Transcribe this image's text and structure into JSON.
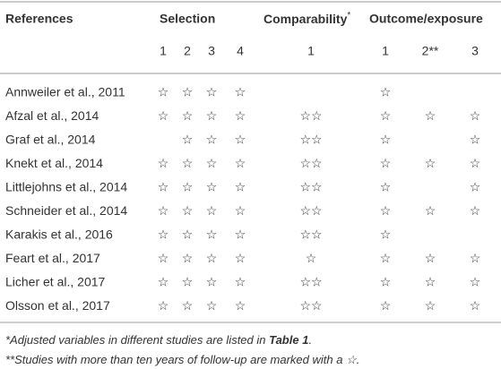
{
  "table": {
    "headers": [
      "References",
      "Selection",
      {
        "text": "Comparability",
        "sup": "*"
      },
      "Outcome/exposure"
    ],
    "subheaders": [
      "1",
      "2",
      "3",
      "4",
      "1",
      "1",
      "2**",
      "3"
    ],
    "rows": [
      [
        "Annweiler et al., 2011",
        "☆",
        "☆",
        "☆",
        "☆",
        null,
        "☆",
        null,
        null
      ],
      [
        "Afzal et al., 2014",
        "☆",
        "☆",
        "☆",
        "☆",
        "☆☆",
        "☆",
        "☆",
        "☆"
      ],
      [
        "Graf et al., 2014",
        null,
        "☆",
        "☆",
        "☆",
        "☆☆",
        "☆",
        null,
        "☆"
      ],
      [
        "Knekt et al., 2014",
        "☆",
        "☆",
        "☆",
        "☆",
        "☆☆",
        "☆",
        "☆",
        "☆"
      ],
      [
        "Littlejohns et al., 2014",
        "☆",
        "☆",
        "☆",
        "☆",
        "☆☆",
        "☆",
        null,
        "☆"
      ],
      [
        "Schneider et al., 2014",
        "☆",
        "☆",
        "☆",
        "☆",
        "☆☆",
        "☆",
        "☆",
        "☆"
      ],
      [
        "Karakis et al., 2016",
        "☆",
        "☆",
        "☆",
        "☆",
        "☆☆",
        "☆",
        null,
        null
      ],
      [
        "Feart et al., 2017",
        "☆",
        "☆",
        "☆",
        "☆",
        "☆",
        "☆",
        "☆",
        "☆"
      ],
      [
        "Licher et al., 2017",
        "☆",
        "☆",
        "☆",
        "☆",
        "☆☆",
        "☆",
        "☆",
        "☆"
      ],
      [
        "Olsson et al., 2017",
        "☆",
        "☆",
        "☆",
        "☆",
        "☆☆",
        "☆",
        "☆",
        "☆"
      ]
    ]
  },
  "footnotes": [
    [
      "*Adjusted variables in different studies are listed in ",
      "Table 1",
      "."
    ],
    [
      "**Studies with more than ten years of follow-up are marked with a ☆."
    ]
  ]
}
